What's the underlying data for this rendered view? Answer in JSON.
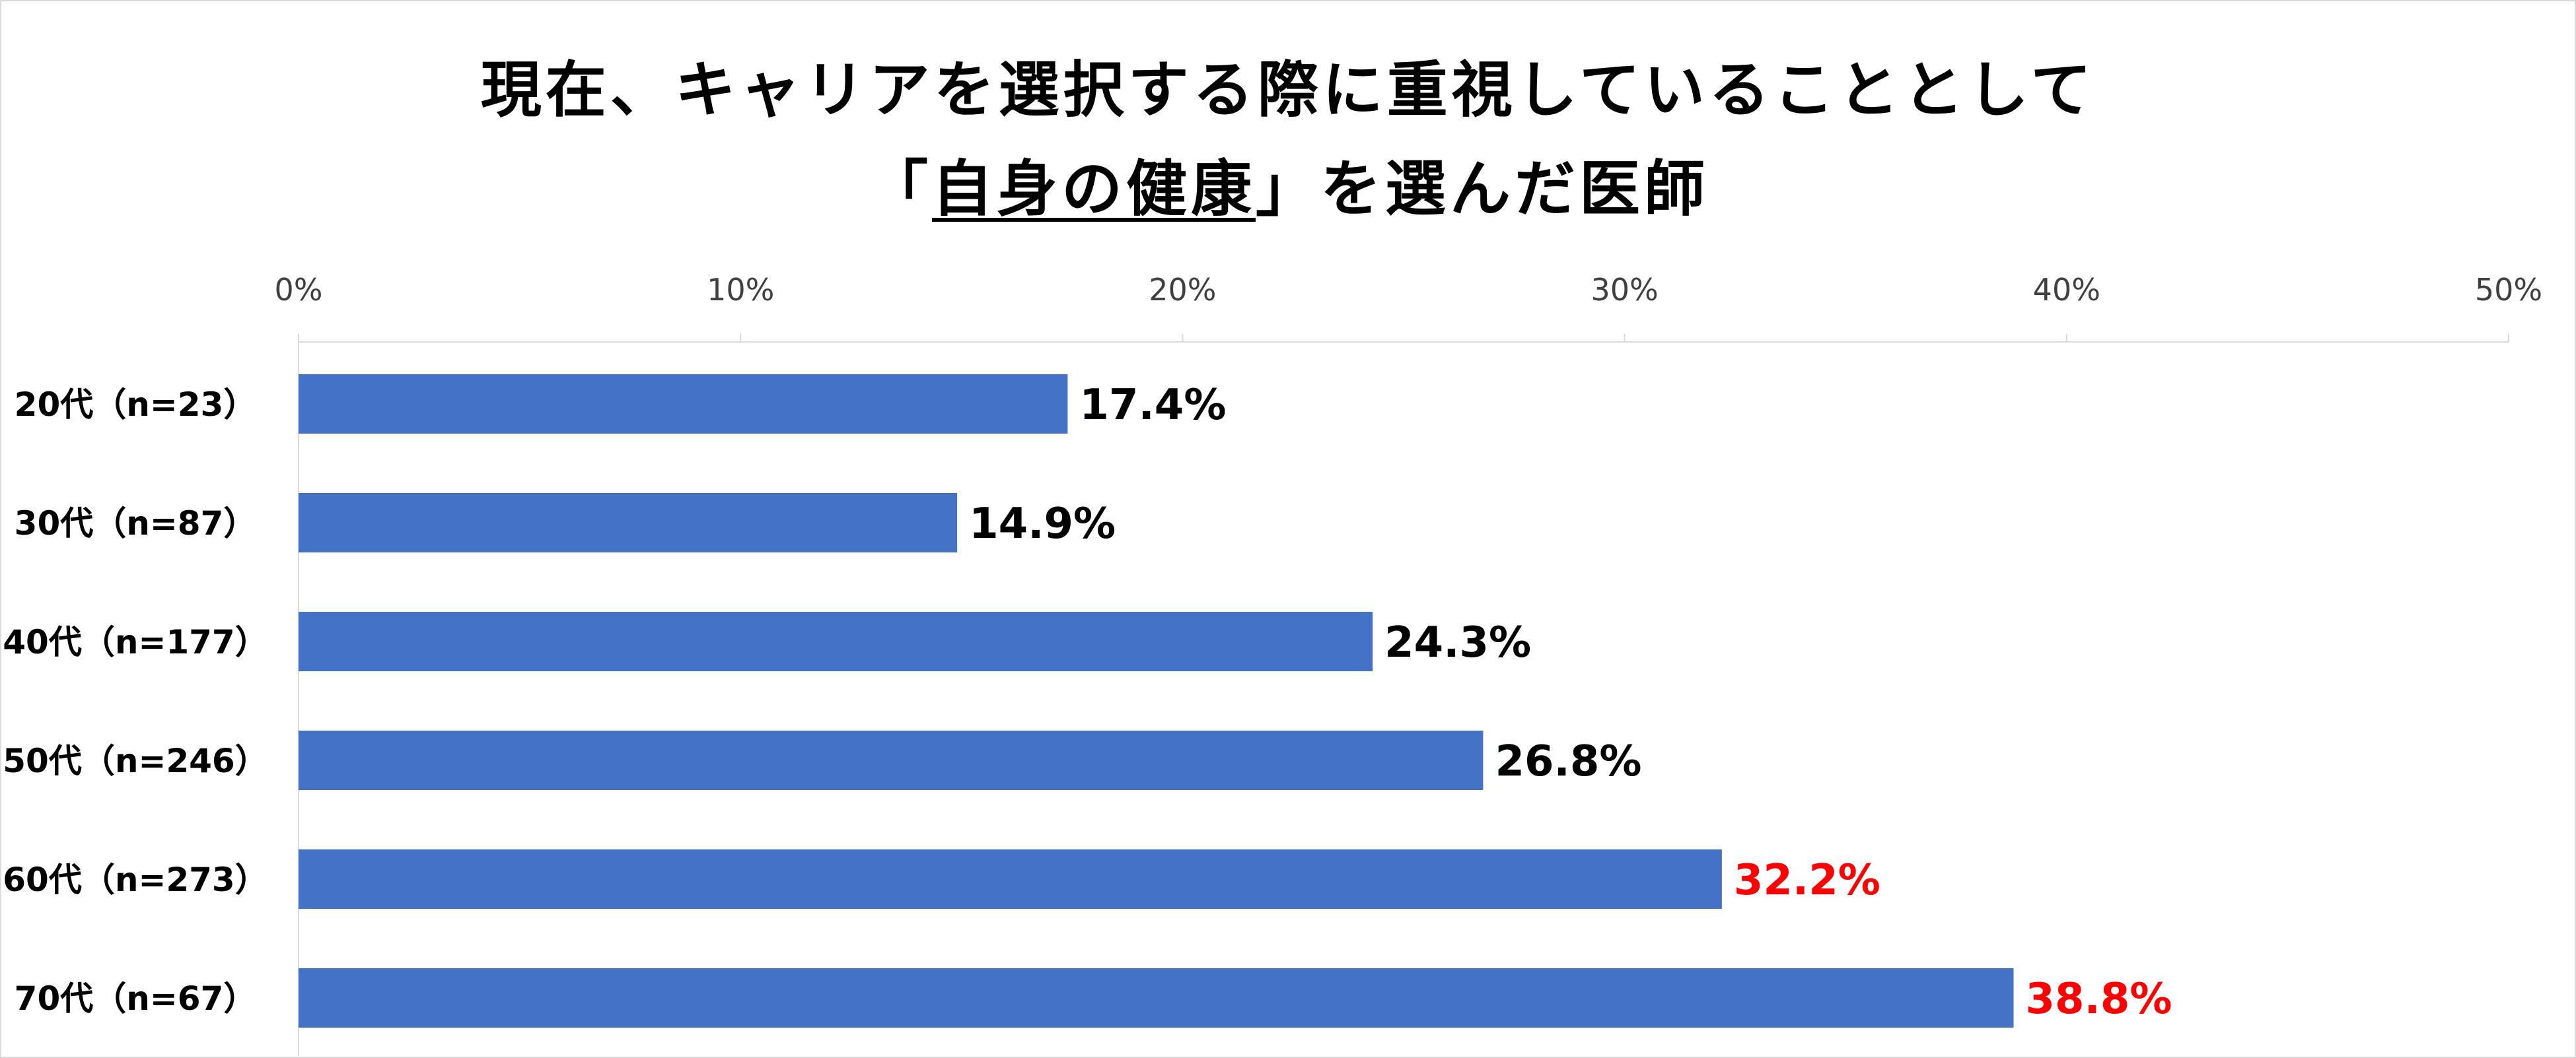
{
  "chart_data": {
    "type": "bar",
    "orientation": "horizontal",
    "title_line1": "現在、キャリアを選択する際に重視していることとして",
    "title_line2_prefix": "「",
    "title_line2_underlined": "自身の健康",
    "title_line2_suffix": "」を選んだ医師",
    "categories": [
      "20代（n=23）",
      "30代（n=87）",
      "40代（n=177）",
      "50代（n=246）",
      "60代（n=273）",
      "70代（n=67）"
    ],
    "values": [
      17.4,
      14.9,
      24.3,
      26.8,
      32.2,
      38.8
    ],
    "data_labels": [
      "17.4%",
      "14.9%",
      "24.3%",
      "26.8%",
      "32.2%",
      "38.8%"
    ],
    "highlight": [
      false,
      false,
      false,
      false,
      true,
      true
    ],
    "x_ticks": [
      0,
      10,
      20,
      30,
      40,
      50
    ],
    "x_tick_labels": [
      "0%",
      "10%",
      "20%",
      "30%",
      "40%",
      "50%"
    ],
    "xlim": [
      0,
      50
    ],
    "axis_position": "top",
    "gridlines": false,
    "legend": "none",
    "colors": {
      "bar": "#4472C4",
      "label_normal": "#000000",
      "label_highlight": "#FF0000",
      "axis": "#D9D9D9"
    }
  }
}
